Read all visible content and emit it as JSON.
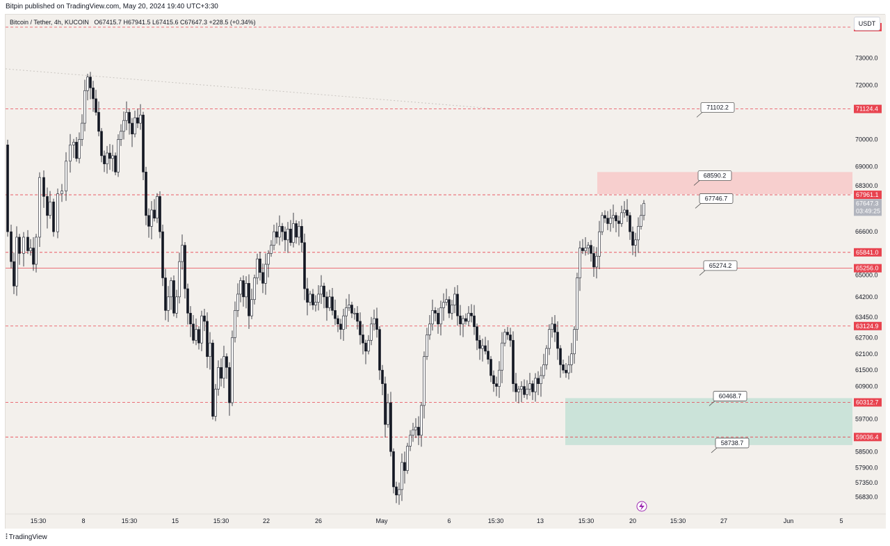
{
  "header": {
    "publisher_text": "Bitpin published on TradingView.com, May 20, 2024 19:40 UTC+3:30"
  },
  "legend": {
    "symbol": "Bitcoin / Tether, 4h, KUCOIN",
    "ohlc": "O67415.7  H67941.5  L67415.6  C67647.3  +228.5 (+0.34%)"
  },
  "currency_button": "USDT",
  "footer": {
    "brand": "TradingView"
  },
  "colors": {
    "background": "#f3f0ec",
    "resistance_line": "#e8434f",
    "resistance_zone": "#f7c9c9",
    "support_zone": "#c3e0d6",
    "candle": "#131722",
    "price_tag_bg": "#e8434f",
    "current_price_bg": "#b2b5be"
  },
  "chart_data": {
    "type": "candlestick",
    "symbol": "Bitcoin / Tether",
    "interval": "4h",
    "exchange": "KUCOIN",
    "ylim": [
      56200,
      74600
    ],
    "y_axis_ticks": [
      "73000.0",
      "72000.0",
      "70000.0",
      "69000.0",
      "68300.0",
      "66600.0",
      "65000.0",
      "64200.0",
      "63450.0",
      "62700.0",
      "62100.0",
      "61500.0",
      "60900.0",
      "59700.0",
      "58500.0",
      "57900.0",
      "57350.0",
      "56830.0"
    ],
    "x_axis_ticks": [
      "15:30",
      "8",
      "15:30",
      "15",
      "15:30",
      "22",
      "26",
      "May",
      "6",
      "15:30",
      "13",
      "15:30",
      "20",
      "15:30",
      "27",
      "Jun",
      "5"
    ],
    "horizontal_levels": [
      {
        "value": 74138.5,
        "label": "74138.5",
        "style": "dashed"
      },
      {
        "value": 71124.4,
        "label": "71124.4",
        "style": "dashed"
      },
      {
        "value": 67961.1,
        "label": "67961.1",
        "style": "dashed"
      },
      {
        "value": 65841.0,
        "label": "65841.0",
        "style": "dashed"
      },
      {
        "value": 65256.0,
        "label": "65256.0",
        "style": "solid"
      },
      {
        "value": 63124.9,
        "label": "63124.9",
        "style": "dashed"
      },
      {
        "value": 60312.7,
        "label": "60312.7",
        "style": "dashed"
      },
      {
        "value": 59036.4,
        "label": "59036.4",
        "style": "dashed"
      }
    ],
    "current_price": {
      "value": 67647.3,
      "label": "67647.3",
      "countdown": "03:49:25"
    },
    "zones": [
      {
        "name": "resistance-zone",
        "from": 67990,
        "to": 68800
      },
      {
        "name": "support-zone",
        "from": 58740,
        "to": 60470
      }
    ],
    "callouts": [
      {
        "label": "71102.2",
        "value": 71102.2
      },
      {
        "label": "68590.2",
        "value": 68590.2
      },
      {
        "label": "67746.7",
        "value": 67746.7
      },
      {
        "label": "65274.2",
        "value": 65274.2
      },
      {
        "label": "60468.7",
        "value": 60468.7
      },
      {
        "label": "58738.7",
        "value": 58738.7
      }
    ],
    "price_path": [
      [
        0,
        69800
      ],
      [
        6,
        66600
      ],
      [
        10,
        65500
      ],
      [
        14,
        64600
      ],
      [
        18,
        66400
      ],
      [
        22,
        65800
      ],
      [
        30,
        66400
      ],
      [
        34,
        65900
      ],
      [
        38,
        66000
      ],
      [
        42,
        65400
      ],
      [
        46,
        66400
      ],
      [
        52,
        68600
      ],
      [
        58,
        67900
      ],
      [
        62,
        67200
      ],
      [
        66,
        67700
      ],
      [
        72,
        66600
      ],
      [
        78,
        68000
      ],
      [
        84,
        68100
      ],
      [
        90,
        69200
      ],
      [
        96,
        69800
      ],
      [
        100,
        69900
      ],
      [
        104,
        69300
      ],
      [
        108,
        70000
      ],
      [
        112,
        70600
      ],
      [
        116,
        71800
      ],
      [
        120,
        72300
      ],
      [
        124,
        71900
      ],
      [
        128,
        71500
      ],
      [
        132,
        71000
      ],
      [
        136,
        70300
      ],
      [
        140,
        69400
      ],
      [
        144,
        69100
      ],
      [
        148,
        69500
      ],
      [
        152,
        69300
      ],
      [
        156,
        69400
      ],
      [
        160,
        68800
      ],
      [
        164,
        70000
      ],
      [
        168,
        70300
      ],
      [
        172,
        70700
      ],
      [
        176,
        71000
      ],
      [
        180,
        70600
      ],
      [
        184,
        70200
      ],
      [
        188,
        70800
      ],
      [
        192,
        70600
      ],
      [
        196,
        70900
      ],
      [
        200,
        68800
      ],
      [
        204,
        67200
      ],
      [
        208,
        66800
      ],
      [
        212,
        67400
      ],
      [
        216,
        67100
      ],
      [
        220,
        67900
      ],
      [
        224,
        66600
      ],
      [
        228,
        64900
      ],
      [
        232,
        63700
      ],
      [
        236,
        64200
      ],
      [
        240,
        64800
      ],
      [
        244,
        63600
      ],
      [
        248,
        64200
      ],
      [
        252,
        65500
      ],
      [
        256,
        66100
      ],
      [
        260,
        64500
      ],
      [
        264,
        63600
      ],
      [
        268,
        63200
      ],
      [
        272,
        62600
      ],
      [
        276,
        63000
      ],
      [
        280,
        62500
      ],
      [
        284,
        63500
      ],
      [
        288,
        63300
      ],
      [
        292,
        62000
      ],
      [
        296,
        62500
      ],
      [
        300,
        59800
      ],
      [
        304,
        60800
      ],
      [
        308,
        61600
      ],
      [
        312,
        61200
      ],
      [
        316,
        62000
      ],
      [
        320,
        61600
      ],
      [
        324,
        60300
      ],
      [
        328,
        62700
      ],
      [
        332,
        63700
      ],
      [
        336,
        64300
      ],
      [
        340,
        64800
      ],
      [
        344,
        64200
      ],
      [
        348,
        64700
      ],
      [
        352,
        63500
      ],
      [
        356,
        64100
      ],
      [
        360,
        64900
      ],
      [
        364,
        65600
      ],
      [
        368,
        65100
      ],
      [
        372,
        64700
      ],
      [
        376,
        65400
      ],
      [
        380,
        65800
      ],
      [
        384,
        66100
      ],
      [
        388,
        66600
      ],
      [
        392,
        66400
      ],
      [
        396,
        66800
      ],
      [
        400,
        66600
      ],
      [
        404,
        66300
      ],
      [
        408,
        66700
      ],
      [
        412,
        66200
      ],
      [
        416,
        66900
      ],
      [
        420,
        66400
      ],
      [
        424,
        66800
      ],
      [
        428,
        66200
      ],
      [
        432,
        64500
      ],
      [
        436,
        64000
      ],
      [
        440,
        64300
      ],
      [
        444,
        63900
      ],
      [
        448,
        64000
      ],
      [
        452,
        64300
      ],
      [
        456,
        64600
      ],
      [
        460,
        64200
      ],
      [
        464,
        63800
      ],
      [
        468,
        64200
      ],
      [
        472,
        63700
      ],
      [
        476,
        63400
      ],
      [
        480,
        63200
      ],
      [
        484,
        63000
      ],
      [
        488,
        63500
      ],
      [
        492,
        63800
      ],
      [
        496,
        63900
      ],
      [
        500,
        63600
      ],
      [
        504,
        63600
      ],
      [
        508,
        63300
      ],
      [
        512,
        62800
      ],
      [
        516,
        62500
      ],
      [
        520,
        62200
      ],
      [
        524,
        62600
      ],
      [
        528,
        63200
      ],
      [
        532,
        63400
      ],
      [
        536,
        63000
      ],
      [
        540,
        61500
      ],
      [
        544,
        61000
      ],
      [
        548,
        59500
      ],
      [
        552,
        60300
      ],
      [
        556,
        58500
      ],
      [
        560,
        57200
      ],
      [
        564,
        56900
      ],
      [
        568,
        57100
      ],
      [
        572,
        58100
      ],
      [
        576,
        57800
      ],
      [
        580,
        58700
      ],
      [
        584,
        59100
      ],
      [
        588,
        59300
      ],
      [
        592,
        59400
      ],
      [
        596,
        59100
      ],
      [
        600,
        60200
      ],
      [
        604,
        62000
      ],
      [
        608,
        62800
      ],
      [
        612,
        63200
      ],
      [
        616,
        63700
      ],
      [
        620,
        63600
      ],
      [
        624,
        63200
      ],
      [
        628,
        63800
      ],
      [
        632,
        64000
      ],
      [
        636,
        64100
      ],
      [
        640,
        63600
      ],
      [
        644,
        63900
      ],
      [
        648,
        64300
      ],
      [
        652,
        63500
      ],
      [
        656,
        63200
      ],
      [
        660,
        63400
      ],
      [
        664,
        63300
      ],
      [
        668,
        63600
      ],
      [
        672,
        63500
      ],
      [
        676,
        63100
      ],
      [
        680,
        62600
      ],
      [
        684,
        62300
      ],
      [
        688,
        62400
      ],
      [
        692,
        62200
      ],
      [
        696,
        61900
      ],
      [
        700,
        61300
      ],
      [
        704,
        61000
      ],
      [
        708,
        60900
      ],
      [
        712,
        61500
      ],
      [
        716,
        62500
      ],
      [
        720,
        62900
      ],
      [
        724,
        62800
      ],
      [
        728,
        62600
      ],
      [
        732,
        61000
      ],
      [
        736,
        60700
      ],
      [
        740,
        60800
      ],
      [
        744,
        60900
      ],
      [
        748,
        60600
      ],
      [
        752,
        60800
      ],
      [
        756,
        61000
      ],
      [
        760,
        60700
      ],
      [
        764,
        61200
      ],
      [
        768,
        61000
      ],
      [
        772,
        61300
      ],
      [
        776,
        61700
      ],
      [
        780,
        62300
      ],
      [
        784,
        63000
      ],
      [
        788,
        63200
      ],
      [
        792,
        62900
      ],
      [
        796,
        62300
      ],
      [
        800,
        61700
      ],
      [
        804,
        61500
      ],
      [
        808,
        61400
      ],
      [
        812,
        61700
      ],
      [
        816,
        62100
      ],
      [
        820,
        63000
      ],
      [
        824,
        64900
      ],
      [
        828,
        66000
      ],
      [
        832,
        65900
      ],
      [
        836,
        66000
      ],
      [
        840,
        66100
      ],
      [
        844,
        65800
      ],
      [
        848,
        65300
      ],
      [
        852,
        65700
      ],
      [
        856,
        66600
      ],
      [
        860,
        67200
      ],
      [
        864,
        67100
      ],
      [
        868,
        66900
      ],
      [
        872,
        67100
      ],
      [
        876,
        67200
      ],
      [
        880,
        67000
      ],
      [
        884,
        66900
      ],
      [
        888,
        67300
      ],
      [
        892,
        67400
      ],
      [
        896,
        67200
      ],
      [
        900,
        66600
      ],
      [
        904,
        66100
      ],
      [
        908,
        66300
      ],
      [
        912,
        66800
      ],
      [
        916,
        67200
      ],
      [
        920,
        67647
      ]
    ]
  }
}
